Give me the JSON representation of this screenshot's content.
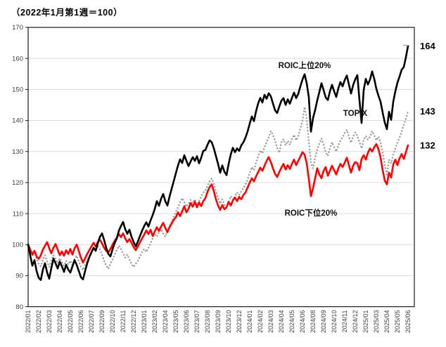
{
  "title": "（2022年1月第1週＝100）",
  "chart_data": {
    "type": "line",
    "title": "（2022年1月第1週＝100）",
    "ylim": [
      80,
      170
    ],
    "y_ticks": [
      80,
      90,
      100,
      110,
      120,
      130,
      140,
      150,
      160,
      170
    ],
    "grid": "horizontal",
    "grid_color": "#d9d9d9",
    "axis_color": "#1a1a1a",
    "tick_label_color": "#3f3f3f",
    "x_tick_interval_weeks": 5,
    "x_tick_labels": [
      "2022/01",
      "2022/02",
      "2022/03",
      "2022/04",
      "2022/05",
      "2022/06",
      "2022/07",
      "2022/09",
      "2022/10",
      "2022/11",
      "2022/12",
      "2023/01",
      "2023/02",
      "2023/04",
      "2023/05",
      "2023/06",
      "2023/07",
      "2023/08",
      "2023/09",
      "2023/10",
      "2023/12",
      "2024/01",
      "2024/02",
      "2024/03",
      "2024/04",
      "2024/05",
      "2024/06",
      "2024/08",
      "2024/09",
      "2024/10",
      "2024/11",
      "2024/12",
      "2025/01",
      "2025/03",
      "2025/04",
      "2025/05",
      "2025/06"
    ],
    "series": [
      {
        "name": "TOPIX",
        "color": "#999999",
        "style": "dotted",
        "end_value_label": "143",
        "values": [
          100,
          98.2,
          96.4,
          97.6,
          95.4,
          93.8,
          93,
          95.2,
          96.6,
          94.6,
          92.8,
          94.8,
          96.6,
          95.4,
          94,
          95.6,
          94.4,
          93.2,
          94.8,
          93.6,
          94.8,
          93.4,
          95.4,
          96.4,
          94.6,
          92.8,
          91.8,
          93.4,
          94.8,
          96.2,
          97.6,
          99,
          98.2,
          99.6,
          98.4,
          96.8,
          94.8,
          93.2,
          92.2,
          93.8,
          95.2,
          96.8,
          98.2,
          99.6,
          98.6,
          97.2,
          95.8,
          96.8,
          95.2,
          93.8,
          92.8,
          93.8,
          94.8,
          96.2,
          97.6,
          98.6,
          97.6,
          99,
          100.4,
          102,
          103.4,
          102.6,
          104,
          105,
          103.6,
          102.6,
          104.4,
          106,
          107.4,
          109,
          110.6,
          112,
          113.6,
          115,
          113.6,
          112.2,
          113.2,
          114.4,
          113.4,
          114.6,
          112.8,
          114,
          115.4,
          116.8,
          117.4,
          119,
          120.4,
          121.3,
          119.6,
          117.2,
          115,
          113.2,
          114.6,
          112.8,
          112,
          113.8,
          115.6,
          114.4,
          115.6,
          116.8,
          116,
          117.2,
          118.2,
          119.4,
          121,
          123,
          125,
          124,
          126.4,
          128.4,
          130.4,
          129.4,
          131.4,
          133,
          134.6,
          136.6,
          135.4,
          133.4,
          131.2,
          129.6,
          133,
          134,
          132,
          133.4,
          132.2,
          134,
          135.4,
          133.6,
          135,
          137.4,
          140,
          144.4,
          140.6,
          133,
          126.4,
          124.6,
          128,
          130.6,
          132.6,
          134.2,
          132.2,
          129.8,
          128.6,
          131,
          133,
          131.4,
          130,
          132,
          133.6,
          134.6,
          136,
          137,
          134.8,
          132.8,
          134.8,
          136.2,
          135,
          133,
          131,
          133.8,
          135,
          133.8,
          134.8,
          136.6,
          135.2,
          133.6,
          134.8,
          133,
          129.6,
          125.8,
          122.6,
          127.4,
          126.2,
          129,
          131,
          132.8,
          134.6,
          136.4,
          138.7,
          140.6,
          143
        ]
      },
      {
        "name": "ROIC下位20%",
        "color": "#fe0000",
        "style": "solid",
        "end_value_label": "132",
        "values": [
          100,
          98.4,
          96.8,
          98,
          96.2,
          95.4,
          96.6,
          98.4,
          99.6,
          100.8,
          98.8,
          97.2,
          99,
          100.2,
          98.4,
          96.6,
          97.8,
          96.4,
          98.2,
          97,
          98.6,
          96.8,
          98.8,
          100,
          98,
          95.8,
          94.2,
          95.6,
          97,
          98.2,
          99.4,
          100.6,
          99.4,
          100.8,
          101.6,
          100.4,
          99,
          98,
          97.4,
          98.6,
          100,
          101.2,
          102.2,
          103.4,
          102.4,
          103.6,
          102,
          100.8,
          101.8,
          100.6,
          99.2,
          98.2,
          99.4,
          100.8,
          102,
          103.2,
          104.6,
          103.4,
          104.8,
          102.8,
          104.2,
          105.6,
          104.4,
          105.8,
          107,
          105.4,
          104,
          105.6,
          106.8,
          108,
          108.8,
          110.4,
          109.2,
          110.8,
          112.4,
          110.4,
          111.6,
          113.4,
          112.2,
          113.8,
          112,
          113.6,
          112.4,
          114,
          115,
          117,
          118.6,
          119.4,
          117.2,
          114.6,
          112.6,
          111.2,
          112.8,
          111.4,
          112,
          113.8,
          112.6,
          114.2,
          115.2,
          114,
          115.4,
          114.6,
          116,
          116.8,
          118.4,
          120,
          121.4,
          120.4,
          122,
          123.4,
          124.8,
          123.8,
          125.4,
          127,
          128.2,
          126.6,
          124.6,
          122.8,
          121.8,
          123.4,
          124.8,
          126,
          124.2,
          125.6,
          124.4,
          126,
          127.4,
          125.6,
          127,
          128.4,
          129.8,
          129,
          126.2,
          121.2,
          115.6,
          118.2,
          121.4,
          124.6,
          122.6,
          121.4,
          123.8,
          125,
          122.2,
          123.8,
          125.4,
          124,
          122.6,
          124.6,
          126,
          125,
          126.4,
          128,
          125.6,
          123.2,
          125.4,
          126.6,
          126.2,
          124,
          127.6,
          128.8,
          127.4,
          129.6,
          131,
          130,
          131.4,
          132.4,
          130.8,
          128,
          124,
          120.6,
          119.4,
          123.2,
          121.6,
          125.8,
          127.4,
          125.6,
          127.8,
          129.2,
          127.6,
          129.8,
          132
        ]
      },
      {
        "name": "ROIC上位20%",
        "color": "#000000",
        "style": "solid",
        "end_value_label": "164",
        "values": [
          100,
          96.5,
          93.2,
          95,
          91.5,
          89.3,
          88.6,
          92,
          94,
          91,
          89,
          92.5,
          95.5,
          94,
          92.3,
          94.5,
          93,
          91.2,
          93.5,
          92,
          91,
          93,
          95,
          93.5,
          91.5,
          89.5,
          88.8,
          91.5,
          94,
          96,
          97.5,
          99,
          98,
          100.5,
          102.5,
          103.6,
          101.5,
          99,
          97,
          96.2,
          98.5,
          100.5,
          102,
          104.5,
          106,
          107.3,
          105,
          103.5,
          104.8,
          102.5,
          100.8,
          99.4,
          101,
          102.8,
          104.5,
          106,
          107.2,
          105.8,
          107.8,
          109.5,
          111.5,
          114,
          112.5,
          114.8,
          116.3,
          114,
          112.6,
          115.5,
          118,
          120.5,
          123,
          125.5,
          127.5,
          126.3,
          128.8,
          127,
          125.3,
          126.8,
          128.2,
          127,
          128.5,
          126.2,
          128,
          130.2,
          130.5,
          132.2,
          133.6,
          133,
          131,
          128.5,
          126,
          123.2,
          125.5,
          123.5,
          122.4,
          126,
          129,
          131.2,
          129.8,
          131,
          130.2,
          132,
          133,
          134.5,
          136.5,
          139,
          141.3,
          139.8,
          143,
          145.5,
          147.3,
          145.8,
          148.3,
          147,
          148.8,
          147.8,
          145.5,
          143.3,
          142.4,
          144.5,
          146.4,
          147.2,
          145,
          146.8,
          145.4,
          147.3,
          149,
          147.2,
          148.6,
          151,
          153.2,
          154.9,
          152,
          147.5,
          136.4,
          140.8,
          143.4,
          146.5,
          149.2,
          152,
          149.8,
          147.4,
          146.6,
          149.4,
          151.5,
          149.4,
          147.6,
          150.4,
          152.4,
          151,
          153,
          154.5,
          151.6,
          148.7,
          151.4,
          153.3,
          154.6,
          146.5,
          139.2,
          149.8,
          153.4,
          151.6,
          153.2,
          155.8,
          153.4,
          150.2,
          148,
          146,
          142.5,
          139.3,
          137.2,
          142.8,
          140.2,
          146,
          149.4,
          152.2,
          154.2,
          156.4,
          157.2,
          160.4,
          164
        ]
      }
    ],
    "series_labels_on_chart": [
      {
        "text": "ROIC上位20%",
        "week": 131,
        "value": 157.8
      },
      {
        "text": "TOPIX",
        "week": 155,
        "value": 142.4
      },
      {
        "text": "ROIC下位20%",
        "week": 134,
        "value": 110.2
      }
    ]
  }
}
